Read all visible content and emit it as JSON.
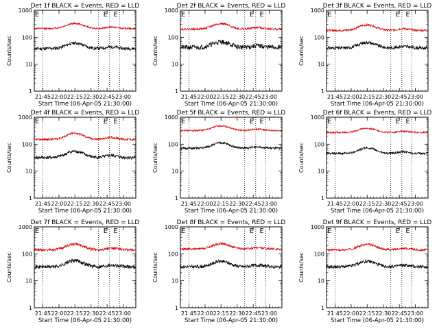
{
  "chart_data": [
    {
      "type": "line",
      "title": "Det 1f BLACK = Events, RED = LLD",
      "xlabel": "Start Time (06-Apr-05 21:30:00)",
      "ylabel": "Counts/sec",
      "yscale": "log",
      "ylim": [
        1,
        1000
      ],
      "xlim": [
        0,
        1
      ],
      "xticks": [
        "21:45",
        "22:00",
        "22:15",
        "22:30",
        "22:45",
        "23:00"
      ],
      "yticks": [
        "1",
        "10",
        "100",
        "1000"
      ],
      "event_markers": [
        "E",
        "E",
        "E"
      ],
      "series": [
        {
          "name": "Events",
          "color": "#000000",
          "base": 38,
          "bump": 1.6,
          "noise": 0.06,
          "seed": 11
        },
        {
          "name": "LLD",
          "color": "#e00000",
          "base": 210,
          "bump": 1.55,
          "noise": 0.03,
          "seed": 12
        }
      ]
    },
    {
      "type": "line",
      "title": "Det 2f BLACK = Events, RED = LLD",
      "xlabel": "Start Time (06-Apr-05 21:30:00)",
      "ylabel": "Counts/sec",
      "yscale": "log",
      "ylim": [
        1,
        1000
      ],
      "xlim": [
        0,
        1
      ],
      "xticks": [
        "21:45",
        "22:00",
        "22:15",
        "22:30",
        "22:45",
        "23:00"
      ],
      "yticks": [
        "1",
        "10",
        "100",
        "1000"
      ],
      "event_markers": [
        "E",
        "E",
        "E"
      ],
      "series": [
        {
          "name": "Events",
          "color": "#000000",
          "base": 42,
          "bump": 1.6,
          "noise": 0.09,
          "seed": 21
        },
        {
          "name": "LLD",
          "color": "#e00000",
          "base": 200,
          "bump": 1.6,
          "noise": 0.04,
          "seed": 22
        }
      ]
    },
    {
      "type": "line",
      "title": "Det 3f BLACK = Events, RED = LLD",
      "xlabel": "Start Time (06-Apr-05 21:30:00)",
      "ylabel": "Counts/sec",
      "yscale": "log",
      "ylim": [
        1,
        1000
      ],
      "xlim": [
        0,
        1
      ],
      "xticks": [
        "21:45",
        "22:00",
        "22:15",
        "22:30",
        "22:45",
        "23:00"
      ],
      "yticks": [
        "1",
        "10",
        "100",
        "1000"
      ],
      "event_markers": [
        "E",
        "E",
        "E"
      ],
      "series": [
        {
          "name": "Events",
          "color": "#000000",
          "base": 40,
          "bump": 1.6,
          "noise": 0.06,
          "seed": 31
        },
        {
          "name": "LLD",
          "color": "#e00000",
          "base": 180,
          "bump": 1.6,
          "noise": 0.04,
          "seed": 32
        }
      ]
    },
    {
      "type": "line",
      "title": "Det 4f BLACK = Events, RED = LLD",
      "xlabel": "Start Time (06-Apr-05 21:30:00)",
      "ylabel": "Counts/sec",
      "yscale": "log",
      "ylim": [
        1,
        1000
      ],
      "xlim": [
        0,
        1
      ],
      "xticks": [
        "21:45",
        "22:00",
        "22:15",
        "22:30",
        "22:45",
        "23:00"
      ],
      "yticks": [
        "1",
        "10",
        "100",
        "1000"
      ],
      "event_markers": [
        "E",
        "E",
        "E"
      ],
      "series": [
        {
          "name": "Events",
          "color": "#000000",
          "base": 32,
          "bump": 1.7,
          "noise": 0.06,
          "seed": 41
        },
        {
          "name": "LLD",
          "color": "#e00000",
          "base": 150,
          "bump": 1.7,
          "noise": 0.04,
          "seed": 42
        }
      ]
    },
    {
      "type": "line",
      "title": "Det 5f BLACK = Events, RED = LLD",
      "xlabel": "Start Time (06-Apr-05 21:30:00)",
      "ylabel": "Counts/sec",
      "yscale": "log",
      "ylim": [
        1,
        1000
      ],
      "xlim": [
        0,
        1
      ],
      "xticks": [
        "21:45",
        "22:00",
        "22:15",
        "22:30",
        "22:45",
        "23:00"
      ],
      "yticks": [
        "1",
        "10",
        "100",
        "1000"
      ],
      "event_markers": [
        "E",
        "E",
        "E"
      ],
      "series": [
        {
          "name": "Events",
          "color": "#000000",
          "base": 70,
          "bump": 1.6,
          "noise": 0.04,
          "seed": 51
        },
        {
          "name": "LLD",
          "color": "#e00000",
          "base": 320,
          "bump": 1.5,
          "noise": 0.03,
          "seed": 52
        }
      ]
    },
    {
      "type": "line",
      "title": "Det 6f BLACK = Events, RED = LLD",
      "xlabel": "Start Time (06-Apr-05 21:30:00)",
      "ylabel": "Counts/sec",
      "yscale": "log",
      "ylim": [
        1,
        1000
      ],
      "xlim": [
        0,
        1
      ],
      "xticks": [
        "21:45",
        "22:00",
        "22:15",
        "22:30",
        "22:45",
        "23:00"
      ],
      "yticks": [
        "1",
        "10",
        "100",
        "1000"
      ],
      "event_markers": [
        "E",
        "E",
        "E"
      ],
      "series": [
        {
          "name": "Events",
          "color": "#000000",
          "base": 45,
          "bump": 1.6,
          "noise": 0.04,
          "seed": 61
        },
        {
          "name": "LLD",
          "color": "#e00000",
          "base": 270,
          "bump": 1.45,
          "noise": 0.03,
          "seed": 62
        }
      ]
    },
    {
      "type": "line",
      "title": "Det 7f BLACK = Events, RED = LLD",
      "xlabel": "Start Time (06-Apr-05 21:30:00)",
      "ylabel": "Counts/sec",
      "yscale": "log",
      "ylim": [
        1,
        1000
      ],
      "xlim": [
        0,
        1
      ],
      "xticks": [
        "21:45",
        "22:00",
        "22:15",
        "22:30",
        "22:45",
        "23:00"
      ],
      "yticks": [
        "1",
        "10",
        "100",
        "1000"
      ],
      "event_markers": [
        "E",
        "E",
        "E"
      ],
      "series": [
        {
          "name": "Events",
          "color": "#000000",
          "base": 33,
          "bump": 1.7,
          "noise": 0.07,
          "seed": 71
        },
        {
          "name": "LLD",
          "color": "#e00000",
          "base": 140,
          "bump": 1.65,
          "noise": 0.05,
          "seed": 72
        }
      ]
    },
    {
      "type": "line",
      "title": "Det 8f BLACK = Events, RED = LLD",
      "xlabel": "Start Time (06-Apr-05 21:30:00)",
      "ylabel": "Counts/sec",
      "yscale": "log",
      "ylim": [
        1,
        1000
      ],
      "xlim": [
        0,
        1
      ],
      "xticks": [
        "21:45",
        "22:00",
        "22:15",
        "22:30",
        "22:45",
        "23:00"
      ],
      "yticks": [
        "1",
        "10",
        "100",
        "1000"
      ],
      "event_markers": [
        "E",
        "E",
        "E"
      ],
      "series": [
        {
          "name": "Events",
          "color": "#000000",
          "base": 33,
          "bump": 1.6,
          "noise": 0.06,
          "seed": 81
        },
        {
          "name": "LLD",
          "color": "#e00000",
          "base": 150,
          "bump": 1.6,
          "noise": 0.04,
          "seed": 82
        }
      ]
    },
    {
      "type": "line",
      "title": "Det 9f BLACK = Events, RED = LLD",
      "xlabel": "Start Time (06-Apr-05 21:30:00)",
      "ylabel": "Counts/sec",
      "yscale": "log",
      "ylim": [
        1,
        1000
      ],
      "xlim": [
        0,
        1
      ],
      "xticks": [
        "21:45",
        "22:00",
        "22:15",
        "22:30",
        "22:45",
        "23:00"
      ],
      "yticks": [
        "1",
        "10",
        "100",
        "1000"
      ],
      "event_markers": [
        "E",
        "E",
        "E"
      ],
      "series": [
        {
          "name": "Events",
          "color": "#000000",
          "base": 33,
          "bump": 1.6,
          "noise": 0.06,
          "seed": 91
        },
        {
          "name": "LLD",
          "color": "#e00000",
          "base": 140,
          "bump": 1.6,
          "noise": 0.04,
          "seed": 92
        }
      ]
    }
  ]
}
